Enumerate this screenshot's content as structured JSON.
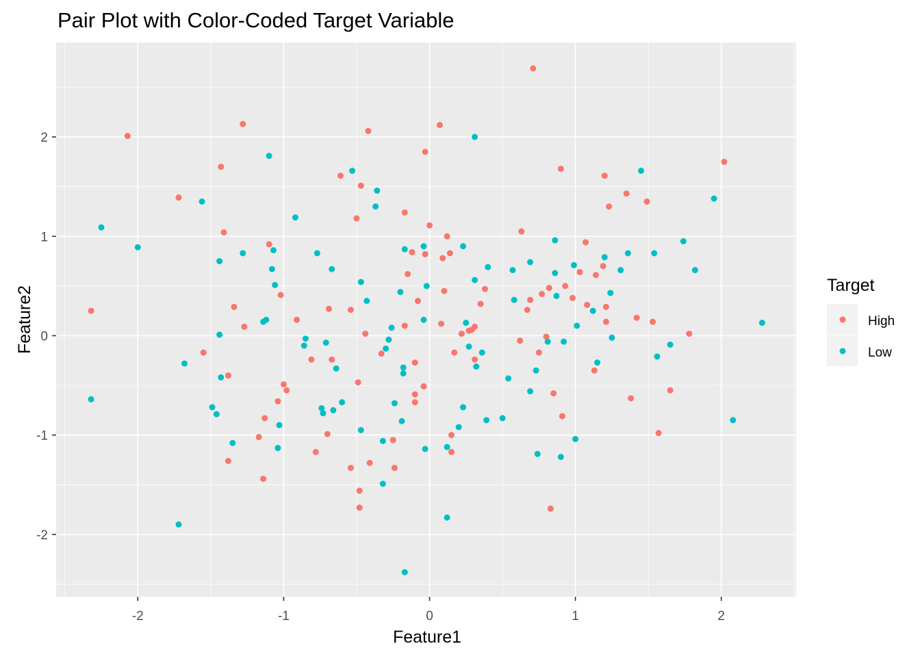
{
  "chart_data": {
    "type": "scatter",
    "title": "Pair Plot with Color-Coded Target Variable",
    "xlabel": "Feature1",
    "ylabel": "Feature2",
    "xlim": [
      -2.5,
      2.5
    ],
    "ylim": [
      -2.6,
      2.9
    ],
    "xticks": [
      -2,
      -1,
      0,
      1,
      2
    ],
    "yticks": [
      -2,
      -1,
      0,
      1,
      2
    ],
    "xtick_labels": [
      "-2",
      "-1",
      "0",
      "1",
      "2"
    ],
    "ytick_labels": [
      "-2",
      "-1",
      "0",
      "1",
      "2"
    ],
    "grid": true,
    "background": "#ebebeb",
    "legend": {
      "title": "Target",
      "position": "right"
    },
    "series": [
      {
        "name": "High",
        "color": "#f8766d",
        "points": [
          [
            -2.32,
            0.25
          ],
          [
            -2.07,
            2.01
          ],
          [
            -1.72,
            1.39
          ],
          [
            -1.55,
            -0.17
          ],
          [
            -1.43,
            1.7
          ],
          [
            -1.41,
            1.04
          ],
          [
            -1.38,
            -0.4
          ],
          [
            -1.38,
            -1.26
          ],
          [
            -1.34,
            0.29
          ],
          [
            -1.28,
            2.13
          ],
          [
            -1.27,
            0.09
          ],
          [
            -1.17,
            -1.02
          ],
          [
            -1.14,
            -1.44
          ],
          [
            -1.13,
            -0.83
          ],
          [
            -1.1,
            0.92
          ],
          [
            -1.04,
            -0.66
          ],
          [
            -1.02,
            0.41
          ],
          [
            -1.0,
            -0.49
          ],
          [
            -0.98,
            -0.55
          ],
          [
            -0.91,
            0.16
          ],
          [
            -0.81,
            -0.24
          ],
          [
            -0.78,
            -1.17
          ],
          [
            -0.7,
            -0.99
          ],
          [
            -0.69,
            0.27
          ],
          [
            -0.67,
            -0.24
          ],
          [
            -0.61,
            1.61
          ],
          [
            -0.54,
            0.26
          ],
          [
            -0.54,
            -1.33
          ],
          [
            -0.5,
            1.18
          ],
          [
            -0.49,
            -0.47
          ],
          [
            -0.48,
            -1.56
          ],
          [
            -0.48,
            -1.73
          ],
          [
            -0.47,
            1.51
          ],
          [
            -0.44,
            0.02
          ],
          [
            -0.42,
            2.06
          ],
          [
            -0.41,
            -1.28
          ],
          [
            -0.33,
            -0.18
          ],
          [
            -0.25,
            -1.05
          ],
          [
            -0.24,
            -1.33
          ],
          [
            -0.17,
            1.24
          ],
          [
            -0.17,
            0.1
          ],
          [
            -0.15,
            0.62
          ],
          [
            -0.12,
            0.84
          ],
          [
            -0.1,
            -0.27
          ],
          [
            -0.1,
            -0.59
          ],
          [
            -0.1,
            -0.67
          ],
          [
            -0.08,
            0.35
          ],
          [
            -0.04,
            -0.51
          ],
          [
            -0.03,
            0.82
          ],
          [
            -0.03,
            1.85
          ],
          [
            0.0,
            1.11
          ],
          [
            0.07,
            2.12
          ],
          [
            0.08,
            0.12
          ],
          [
            0.09,
            0.78
          ],
          [
            0.1,
            0.45
          ],
          [
            0.12,
            1.0
          ],
          [
            0.14,
            0.83
          ],
          [
            0.15,
            -1.0
          ],
          [
            0.15,
            -1.17
          ],
          [
            0.17,
            -0.17
          ],
          [
            0.22,
            0.02
          ],
          [
            0.27,
            0.05
          ],
          [
            0.29,
            0.06
          ],
          [
            0.31,
            0.09
          ],
          [
            0.31,
            -0.24
          ],
          [
            0.35,
            0.32
          ],
          [
            0.38,
            0.47
          ],
          [
            0.62,
            -0.05
          ],
          [
            0.63,
            1.05
          ],
          [
            0.67,
            0.26
          ],
          [
            0.69,
            0.36
          ],
          [
            0.71,
            2.69
          ],
          [
            0.75,
            -0.17
          ],
          [
            0.77,
            0.42
          ],
          [
            0.8,
            -0.01
          ],
          [
            0.82,
            0.48
          ],
          [
            0.83,
            -1.74
          ],
          [
            0.85,
            -0.58
          ],
          [
            0.9,
            1.68
          ],
          [
            0.91,
            -0.81
          ],
          [
            0.93,
            0.5
          ],
          [
            0.98,
            0.38
          ],
          [
            1.03,
            0.64
          ],
          [
            1.07,
            0.94
          ],
          [
            1.08,
            0.31
          ],
          [
            1.13,
            -0.35
          ],
          [
            1.14,
            0.61
          ],
          [
            1.19,
            0.7
          ],
          [
            1.2,
            1.61
          ],
          [
            1.21,
            0.29
          ],
          [
            1.21,
            0.14
          ],
          [
            1.23,
            1.3
          ],
          [
            1.35,
            1.43
          ],
          [
            1.38,
            -0.63
          ],
          [
            1.42,
            0.18
          ],
          [
            1.49,
            1.35
          ],
          [
            1.53,
            0.14
          ],
          [
            1.57,
            -0.98
          ],
          [
            1.65,
            -0.55
          ],
          [
            1.78,
            0.02
          ],
          [
            2.02,
            1.75
          ]
        ]
      },
      {
        "name": "Low",
        "color": "#00bfc4",
        "points": [
          [
            -2.32,
            -0.64
          ],
          [
            -2.25,
            1.09
          ],
          [
            -2.0,
            0.89
          ],
          [
            -1.72,
            -1.9
          ],
          [
            -1.68,
            -0.28
          ],
          [
            -1.56,
            1.35
          ],
          [
            -1.49,
            -0.72
          ],
          [
            -1.46,
            -0.79
          ],
          [
            -1.44,
            0.01
          ],
          [
            -1.44,
            0.75
          ],
          [
            -1.43,
            -0.42
          ],
          [
            -1.35,
            -1.08
          ],
          [
            -1.28,
            0.83
          ],
          [
            -1.14,
            0.14
          ],
          [
            -1.12,
            0.16
          ],
          [
            -1.1,
            1.81
          ],
          [
            -1.08,
            0.67
          ],
          [
            -1.07,
            0.86
          ],
          [
            -1.06,
            0.51
          ],
          [
            -1.04,
            -1.13
          ],
          [
            -1.03,
            -0.9
          ],
          [
            -0.92,
            1.19
          ],
          [
            -0.86,
            -0.1
          ],
          [
            -0.85,
            -0.03
          ],
          [
            -0.77,
            0.83
          ],
          [
            -0.74,
            -0.73
          ],
          [
            -0.73,
            -0.78
          ],
          [
            -0.71,
            -0.07
          ],
          [
            -0.67,
            0.67
          ],
          [
            -0.66,
            -0.75
          ],
          [
            -0.64,
            -0.33
          ],
          [
            -0.6,
            -0.67
          ],
          [
            -0.53,
            1.66
          ],
          [
            -0.47,
            0.54
          ],
          [
            -0.47,
            -0.95
          ],
          [
            -0.43,
            0.35
          ],
          [
            -0.37,
            1.3
          ],
          [
            -0.36,
            1.46
          ],
          [
            -0.32,
            -1.49
          ],
          [
            -0.32,
            -1.06
          ],
          [
            -0.3,
            -0.13
          ],
          [
            -0.28,
            -0.04
          ],
          [
            -0.26,
            0.08
          ],
          [
            -0.24,
            -0.68
          ],
          [
            -0.2,
            0.44
          ],
          [
            -0.19,
            -0.86
          ],
          [
            -0.18,
            -0.32
          ],
          [
            -0.18,
            -0.38
          ],
          [
            -0.17,
            0.87
          ],
          [
            -0.17,
            -2.38
          ],
          [
            -0.04,
            0.9
          ],
          [
            -0.04,
            0.16
          ],
          [
            -0.03,
            -1.14
          ],
          [
            -0.02,
            0.5
          ],
          [
            0.12,
            -1.12
          ],
          [
            0.12,
            -1.83
          ],
          [
            0.2,
            -0.92
          ],
          [
            0.23,
            0.9
          ],
          [
            0.23,
            -0.72
          ],
          [
            0.25,
            0.13
          ],
          [
            0.27,
            -0.11
          ],
          [
            0.31,
            2.0
          ],
          [
            0.31,
            0.56
          ],
          [
            0.32,
            -0.31
          ],
          [
            0.36,
            -0.17
          ],
          [
            0.39,
            -0.85
          ],
          [
            0.4,
            0.69
          ],
          [
            0.5,
            -0.83
          ],
          [
            0.54,
            -0.43
          ],
          [
            0.57,
            0.66
          ],
          [
            0.58,
            0.36
          ],
          [
            0.69,
            0.74
          ],
          [
            0.69,
            -0.56
          ],
          [
            0.73,
            -0.35
          ],
          [
            0.74,
            -1.19
          ],
          [
            0.81,
            -0.06
          ],
          [
            0.86,
            0.96
          ],
          [
            0.86,
            0.63
          ],
          [
            0.87,
            0.4
          ],
          [
            0.9,
            -1.22
          ],
          [
            0.92,
            -0.06
          ],
          [
            0.99,
            0.71
          ],
          [
            1.0,
            -1.04
          ],
          [
            1.01,
            0.1
          ],
          [
            1.12,
            0.25
          ],
          [
            1.15,
            -0.27
          ],
          [
            1.2,
            0.79
          ],
          [
            1.24,
            0.43
          ],
          [
            1.25,
            -0.02
          ],
          [
            1.31,
            0.66
          ],
          [
            1.36,
            0.83
          ],
          [
            1.45,
            1.66
          ],
          [
            1.54,
            0.83
          ],
          [
            1.56,
            -0.21
          ],
          [
            1.65,
            -0.09
          ],
          [
            1.74,
            0.95
          ],
          [
            1.82,
            0.66
          ],
          [
            1.95,
            1.38
          ],
          [
            2.08,
            -0.85
          ],
          [
            2.28,
            0.13
          ]
        ]
      }
    ]
  }
}
